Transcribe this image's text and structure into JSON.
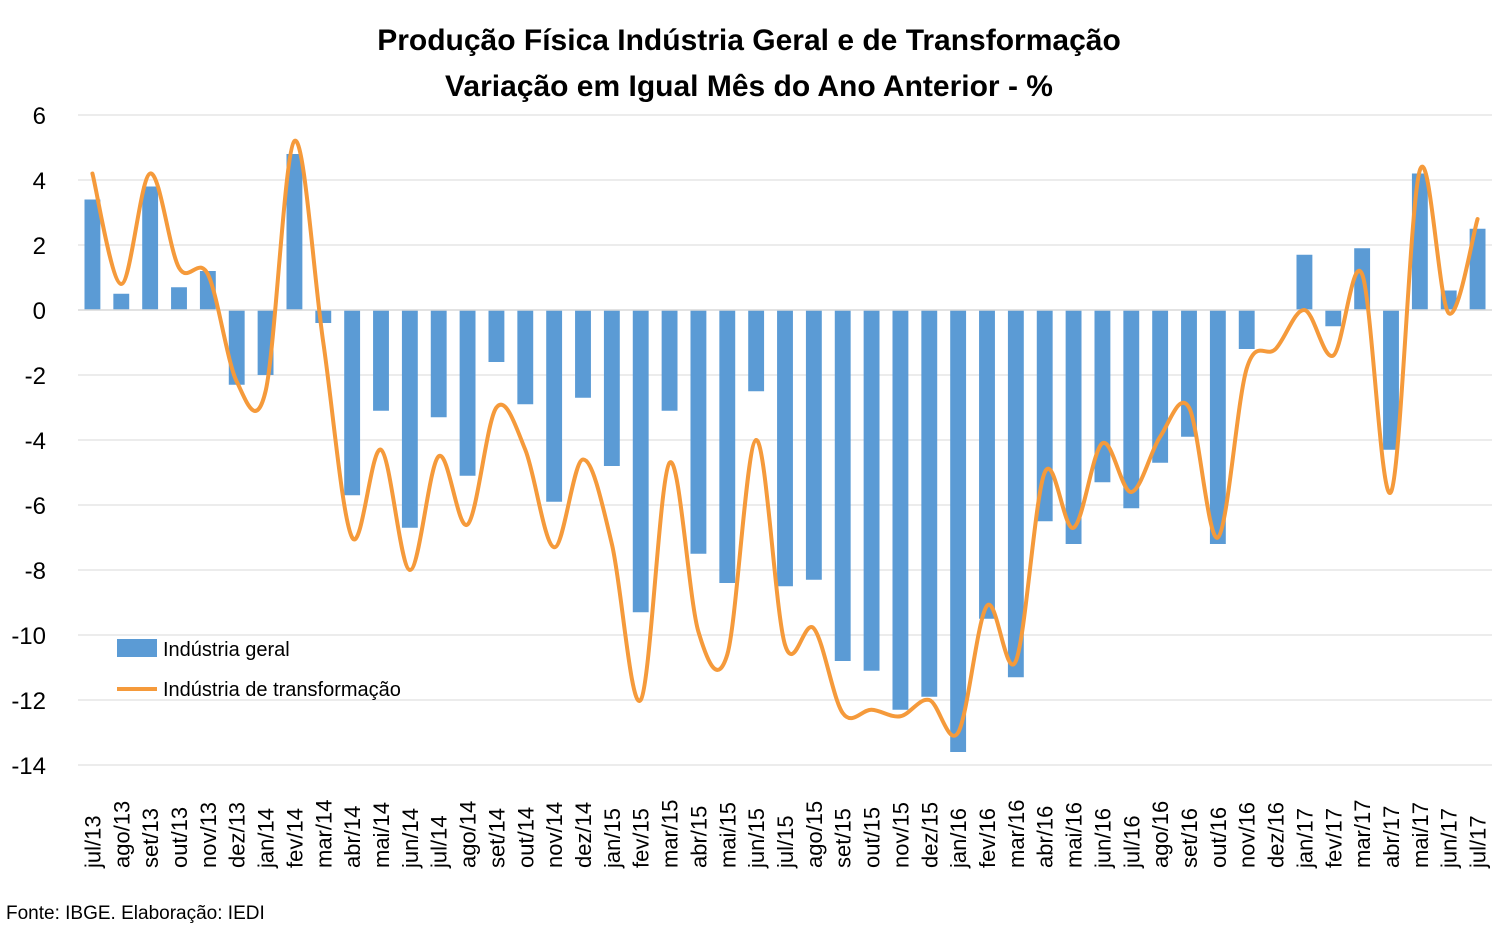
{
  "chart_data": {
    "type": "bar",
    "title": "Produção Física Indústria Geral e de Transformação",
    "subtitle": "Variação em Igual Mês do Ano Anterior - %",
    "xlabel": "",
    "ylabel": "",
    "ylim": [
      -14,
      6
    ],
    "yticks": [
      6,
      4,
      2,
      0,
      -2,
      -4,
      -6,
      -8,
      -10,
      -12,
      -14
    ],
    "grid": true,
    "legend_position": "bottom-left",
    "categories": [
      "jul/13",
      "ago/13",
      "set/13",
      "out/13",
      "nov/13",
      "dez/13",
      "jan/14",
      "fev/14",
      "mar/14",
      "abr/14",
      "mai/14",
      "jun/14",
      "jul/14",
      "ago/14",
      "set/14",
      "out/14",
      "nov/14",
      "dez/14",
      "jan/15",
      "fev/15",
      "mar/15",
      "abr/15",
      "mai/15",
      "jun/15",
      "jul/15",
      "ago/15",
      "set/15",
      "out/15",
      "nov/15",
      "dez/15",
      "jan/16",
      "fev/16",
      "mar/16",
      "abr/16",
      "mai/16",
      "jun/16",
      "jul/16",
      "ago/16",
      "set/16",
      "out/16",
      "nov/16",
      "dez/16",
      "jan/17",
      "fev/17",
      "mar/17",
      "abr/17",
      "mai/17",
      "jun/17",
      "jul/17"
    ],
    "series": [
      {
        "name": "Indústria geral",
        "kind": "bar",
        "color": "#5b9bd5",
        "values": [
          3.4,
          0.5,
          3.8,
          0.7,
          1.2,
          -2.3,
          -2.0,
          4.8,
          -0.4,
          -5.7,
          -3.1,
          -6.7,
          -3.3,
          -5.1,
          -1.6,
          -2.9,
          -5.9,
          -2.7,
          -4.8,
          -9.3,
          -3.1,
          -7.5,
          -8.4,
          -2.5,
          -8.5,
          -8.3,
          -10.8,
          -11.1,
          -12.3,
          -11.9,
          -13.6,
          -9.5,
          -11.3,
          -6.5,
          -7.2,
          -5.3,
          -6.1,
          -4.7,
          -3.9,
          -7.2,
          -1.2,
          0.0,
          1.7,
          -0.5,
          1.9,
          -4.3,
          4.2,
          0.6,
          2.5
        ]
      },
      {
        "name": "Indústria de transformação",
        "kind": "line",
        "color": "#f59a3b",
        "values": [
          4.2,
          0.8,
          4.2,
          1.3,
          1.1,
          -2.2,
          -2.5,
          5.2,
          -1.0,
          -7.0,
          -4.3,
          -8.0,
          -4.5,
          -6.6,
          -3.0,
          -4.3,
          -7.3,
          -4.6,
          -7.2,
          -12.0,
          -4.7,
          -9.9,
          -10.6,
          -4.0,
          -10.3,
          -9.8,
          -12.4,
          -12.3,
          -12.5,
          -12.0,
          -13.0,
          -9.1,
          -10.8,
          -5.0,
          -6.7,
          -4.1,
          -5.6,
          -3.9,
          -3.0,
          -7.0,
          -1.8,
          -1.2,
          0.0,
          -1.4,
          1.1,
          -5.6,
          4.3,
          -0.1,
          2.8
        ]
      }
    ]
  },
  "source_note": "Fonte: IBGE. Elaboração: IEDI"
}
